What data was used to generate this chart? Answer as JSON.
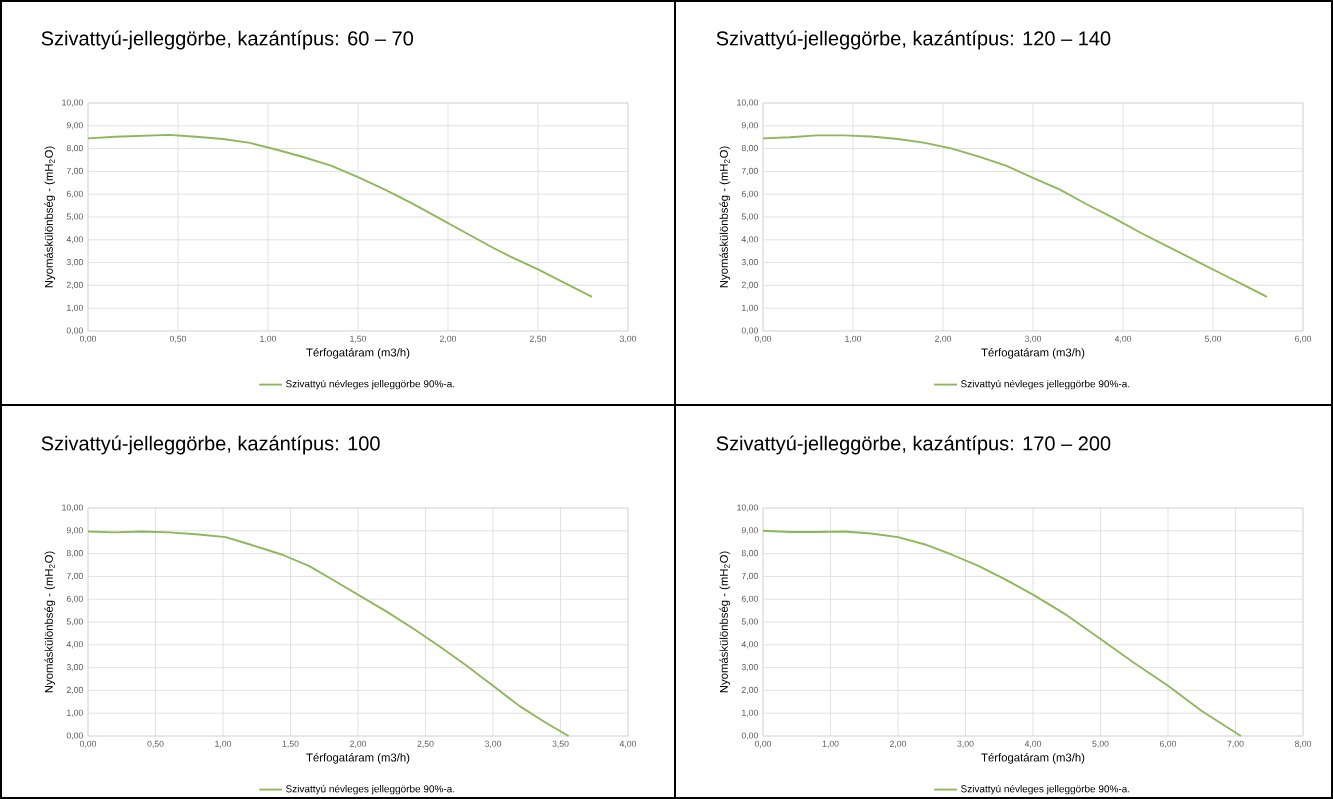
{
  "chart_data": [
    {
      "type": "line",
      "title": "Szivattyú-jelleggörbe, kazántípus: 60 – 70",
      "xlabel": "Térfogatáram (m3/h)",
      "ylabel": "Nyomáskülönbség - (mH$_{2}$O)",
      "grid": true,
      "legend": "bottom",
      "marker": "none",
      "xlim": [
        0,
        3
      ],
      "ylim": [
        0,
        10
      ],
      "xticks": [
        {
          "value": 0,
          "label": "0,00"
        },
        {
          "value": 0.5,
          "label": "0,50"
        },
        {
          "value": 1,
          "label": "1,00"
        },
        {
          "value": 1.5,
          "label": "1,50"
        },
        {
          "value": 2,
          "label": "2,00"
        },
        {
          "value": 2.5,
          "label": "2,50"
        },
        {
          "value": 3,
          "label": "3,00"
        }
      ],
      "yticks": [
        {
          "value": 0,
          "label": "0,00"
        },
        {
          "value": 1,
          "label": "1,00"
        },
        {
          "value": 2,
          "label": "2,00"
        },
        {
          "value": 3,
          "label": "3,00"
        },
        {
          "value": 4,
          "label": "4,00"
        },
        {
          "value": 5,
          "label": "5,00"
        },
        {
          "value": 6,
          "label": "6,00"
        },
        {
          "value": 7,
          "label": "7,00"
        },
        {
          "value": 8,
          "label": "8,00"
        },
        {
          "value": 9,
          "label": "9,00"
        },
        {
          "value": 10,
          "label": "10,00"
        }
      ],
      "x": [
        0,
        0.15,
        0.45,
        0.6,
        0.75,
        0.9,
        1.05,
        1.2,
        1.35,
        1.5,
        1.65,
        1.8,
        1.95,
        2.1,
        2.25,
        2.35,
        2.5,
        2.65,
        2.8
      ],
      "series": [
        {
          "name": "Szivattyú névleges jelleggörbe 90%-a.",
          "color": "#8db85a",
          "values": [
            8.45,
            8.52,
            8.6,
            8.52,
            8.42,
            8.25,
            7.95,
            7.62,
            7.25,
            6.75,
            6.2,
            5.6,
            4.95,
            4.3,
            3.65,
            3.25,
            2.7,
            2.1,
            1.5
          ]
        }
      ]
    },
    {
      "type": "line",
      "title": "Szivattyú-jelleggörbe, kazántípus: 120 – 140",
      "xlabel": "Térfogatáram (m3/h)",
      "ylabel": "Nyomáskülönbség - (mH$_{2}$O)",
      "grid": true,
      "legend": "bottom",
      "marker": "none",
      "xlim": [
        0,
        6
      ],
      "ylim": [
        0,
        10
      ],
      "xticks": [
        {
          "value": 0,
          "label": "0,00"
        },
        {
          "value": 1,
          "label": "1,00"
        },
        {
          "value": 2,
          "label": "2,00"
        },
        {
          "value": 3,
          "label": "3,00"
        },
        {
          "value": 4,
          "label": "4,00"
        },
        {
          "value": 5,
          "label": "5,00"
        },
        {
          "value": 6,
          "label": "6,00"
        }
      ],
      "yticks": [
        {
          "value": 0,
          "label": "0,00"
        },
        {
          "value": 1,
          "label": "1,00"
        },
        {
          "value": 2,
          "label": "2,00"
        },
        {
          "value": 3,
          "label": "3,00"
        },
        {
          "value": 4,
          "label": "4,00"
        },
        {
          "value": 5,
          "label": "5,00"
        },
        {
          "value": 6,
          "label": "6,00"
        },
        {
          "value": 7,
          "label": "7,00"
        },
        {
          "value": 8,
          "label": "8,00"
        },
        {
          "value": 9,
          "label": "9,00"
        },
        {
          "value": 10,
          "label": "10,00"
        }
      ],
      "x": [
        0,
        0.3,
        0.6,
        0.9,
        1.2,
        1.5,
        1.8,
        2.1,
        2.4,
        2.7,
        3.0,
        3.3,
        3.6,
        3.9,
        4.2,
        4.5,
        4.8,
        5.1,
        5.35,
        5.6
      ],
      "series": [
        {
          "name": "Szivattyú névleges jelleggörbe 90%-a.",
          "color": "#8db85a",
          "values": [
            8.45,
            8.5,
            8.58,
            8.58,
            8.53,
            8.42,
            8.25,
            8.0,
            7.65,
            7.25,
            6.72,
            6.2,
            5.55,
            4.95,
            4.3,
            3.7,
            3.1,
            2.5,
            2.0,
            1.5
          ]
        }
      ]
    },
    {
      "type": "line",
      "title": "Szivattyú-jelleggörbe, kazántípus: 100",
      "xlabel": "Térfogatáram (m3/h)",
      "ylabel": "Nyomáskülönbség - (mH$_{2}$O)",
      "grid": true,
      "legend": "bottom",
      "marker": "none",
      "xlim": [
        0,
        4
      ],
      "ylim": [
        0,
        10
      ],
      "xticks": [
        {
          "value": 0,
          "label": "0,00"
        },
        {
          "value": 0.5,
          "label": "0,50"
        },
        {
          "value": 1,
          "label": "1,00"
        },
        {
          "value": 1.5,
          "label": "1,50"
        },
        {
          "value": 2,
          "label": "2,00"
        },
        {
          "value": 2.5,
          "label": "2,50"
        },
        {
          "value": 3,
          "label": "3,00"
        },
        {
          "value": 3.5,
          "label": "3,50"
        },
        {
          "value": 4,
          "label": "4,00"
        }
      ],
      "yticks": [
        {
          "value": 0,
          "label": "0,00"
        },
        {
          "value": 1,
          "label": "1,00"
        },
        {
          "value": 2,
          "label": "2,00"
        },
        {
          "value": 3,
          "label": "3,00"
        },
        {
          "value": 4,
          "label": "4,00"
        },
        {
          "value": 5,
          "label": "5,00"
        },
        {
          "value": 6,
          "label": "6,00"
        },
        {
          "value": 7,
          "label": "7,00"
        },
        {
          "value": 8,
          "label": "8,00"
        },
        {
          "value": 9,
          "label": "9,00"
        },
        {
          "value": 10,
          "label": "10,00"
        }
      ],
      "x": [
        0,
        0.2,
        0.4,
        0.6,
        0.8,
        1.02,
        1.2,
        1.44,
        1.64,
        1.8,
        2.0,
        2.2,
        2.4,
        2.6,
        2.8,
        3.0,
        3.2,
        3.4,
        3.56
      ],
      "series": [
        {
          "name": "Szivattyú névleges jelleggörbe 90%-a.",
          "color": "#8db85a",
          "values": [
            8.97,
            8.93,
            8.97,
            8.93,
            8.85,
            8.72,
            8.4,
            7.95,
            7.45,
            6.9,
            6.2,
            5.5,
            4.75,
            3.95,
            3.1,
            2.2,
            1.3,
            0.55,
            0.0
          ]
        }
      ]
    },
    {
      "type": "line",
      "title": "Szivattyú-jelleggörbe, kazántípus: 170 – 200",
      "xlabel": "Térfogatáram (m3/h)",
      "ylabel": "Nyomáskülönbség - (mH$_{2}$O)",
      "grid": true,
      "legend": "bottom",
      "marker": "none",
      "xlim": [
        0,
        8
      ],
      "ylim": [
        0,
        10
      ],
      "xticks": [
        {
          "value": 0,
          "label": "0,00"
        },
        {
          "value": 1,
          "label": "1,00"
        },
        {
          "value": 2,
          "label": "2,00"
        },
        {
          "value": 3,
          "label": "3,00"
        },
        {
          "value": 4,
          "label": "4,00"
        },
        {
          "value": 5,
          "label": "5,00"
        },
        {
          "value": 6,
          "label": "6,00"
        },
        {
          "value": 7,
          "label": "7,00"
        },
        {
          "value": 8,
          "label": "8,00"
        }
      ],
      "yticks": [
        {
          "value": 0,
          "label": "0,00"
        },
        {
          "value": 1,
          "label": "1,00"
        },
        {
          "value": 2,
          "label": "2,00"
        },
        {
          "value": 3,
          "label": "3,00"
        },
        {
          "value": 4,
          "label": "4,00"
        },
        {
          "value": 5,
          "label": "5,00"
        },
        {
          "value": 6,
          "label": "6,00"
        },
        {
          "value": 7,
          "label": "7,00"
        },
        {
          "value": 8,
          "label": "8,00"
        },
        {
          "value": 9,
          "label": "9,00"
        },
        {
          "value": 10,
          "label": "10,00"
        }
      ],
      "x": [
        0,
        0.4,
        0.8,
        1.2,
        1.6,
        2.0,
        2.4,
        2.8,
        3.2,
        3.6,
        4.0,
        4.5,
        5.0,
        5.5,
        6.0,
        6.5,
        7.08
      ],
      "series": [
        {
          "name": "Szivattyú névleges jelleggörbe 90%-a.",
          "color": "#8db85a",
          "values": [
            9.0,
            8.95,
            8.95,
            8.97,
            8.88,
            8.72,
            8.4,
            7.95,
            7.45,
            6.85,
            6.2,
            5.3,
            4.25,
            3.2,
            2.2,
            1.1,
            0.0
          ]
        }
      ]
    }
  ]
}
